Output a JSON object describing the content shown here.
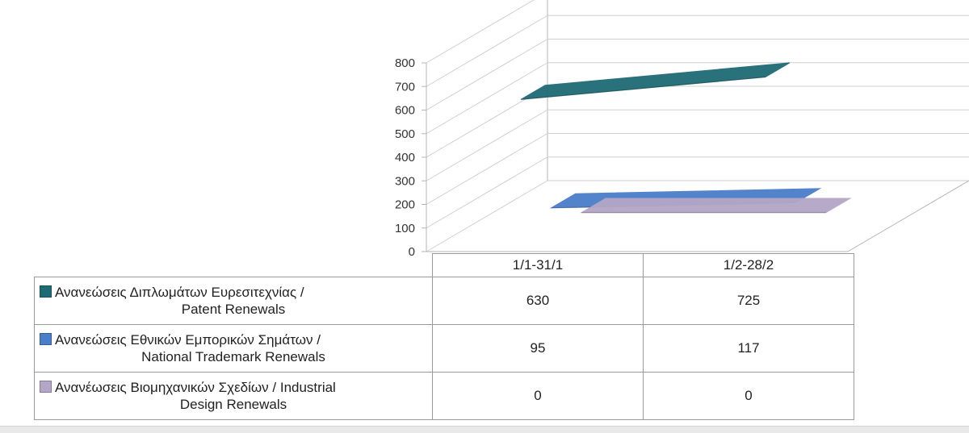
{
  "chart_data": {
    "type": "line",
    "style": "3d-line",
    "categories": [
      "1/1-31/1",
      "1/2-28/2"
    ],
    "series": [
      {
        "name": "Ανανεώσεις Διπλωμάτων Ευρεσιτεχνίας  /",
        "name_line2": "Patent Renewals",
        "values": [
          630,
          725
        ],
        "color": "#1f6b74"
      },
      {
        "name": "Ανανεώσεις Εθνικών Εμπορικών Σημάτων /",
        "name_line2": "National Trademark Renewals",
        "values": [
          95,
          117
        ],
        "color": "#4a7ec9"
      },
      {
        "name": "Ανανέωσεις Βιομηχανικών Σχεδίων / Industrial",
        "name_line2": "Design Renewals",
        "values": [
          0,
          0
        ],
        "color": "#b3a6c6"
      }
    ],
    "ylim": [
      0,
      800
    ],
    "yticks": [
      "0",
      "100",
      "200",
      "300",
      "400",
      "500",
      "600",
      "700",
      "800"
    ],
    "grid": true,
    "legend": "data-table"
  }
}
